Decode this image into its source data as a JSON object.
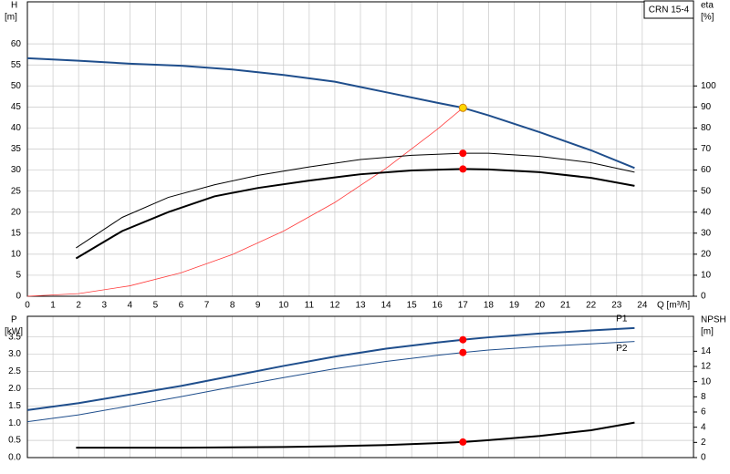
{
  "chart_data": [
    {
      "type": "line",
      "label_box": "CRN 15-4",
      "y_label": "H",
      "y_unit": "[m]",
      "y2_label": "eta",
      "y2_unit": "[%]",
      "x_label": "Q [m³/h]",
      "xlim": [
        0,
        26
      ],
      "xticks": [
        0,
        1,
        2,
        3,
        4,
        5,
        6,
        7,
        8,
        9,
        10,
        11,
        12,
        13,
        14,
        15,
        16,
        17,
        18,
        19,
        20,
        21,
        22,
        23,
        24
      ],
      "ylim": [
        0,
        70
      ],
      "yticks": [
        0,
        5,
        10,
        15,
        20,
        25,
        30,
        35,
        40,
        45,
        50,
        55,
        60
      ],
      "y2lim": [
        0,
        140
      ],
      "y2ticks": [
        0,
        10,
        20,
        30,
        40,
        50,
        60,
        70,
        80,
        90,
        100
      ],
      "grid": true,
      "series": [
        {
          "color": "#1f4e8c",
          "width": 2,
          "x": [
            0,
            2,
            4,
            6,
            8,
            10,
            12,
            14,
            16,
            17,
            18,
            20,
            22,
            23.7
          ],
          "values": [
            56.6,
            56,
            55.3,
            54.8,
            53.9,
            52.6,
            51,
            48.5,
            46,
            44.8,
            43,
            39,
            34.7,
            30.5
          ]
        },
        {
          "color": "#ff3b3b",
          "width": 0.8,
          "x": [
            0,
            2,
            4,
            6,
            8,
            10,
            12,
            14,
            16,
            17
          ],
          "values": [
            0,
            0.62,
            2.48,
            5.58,
            9.92,
            15.5,
            22.3,
            30.4,
            39.7,
            44.8
          ]
        },
        {
          "color": "#000000",
          "width": 1,
          "axis": "y2",
          "x": [
            1.9,
            3.7,
            5.5,
            7.3,
            9,
            11,
            13,
            15,
            17,
            18,
            20,
            22,
            23.7
          ],
          "values": [
            23,
            37.5,
            47,
            53,
            57.5,
            61.5,
            65,
            67,
            68,
            68,
            66.5,
            63.5,
            59
          ]
        },
        {
          "color": "#000000",
          "width": 2,
          "axis": "y2",
          "x": [
            1.9,
            3.7,
            5.5,
            7.3,
            9,
            11,
            13,
            15,
            17,
            18,
            20,
            22,
            23.7
          ],
          "values": [
            18,
            31,
            40,
            47.5,
            51.5,
            55,
            58,
            59.8,
            60.5,
            60.3,
            59,
            56.3,
            52.5
          ]
        }
      ],
      "points": {
        "x": [
          17,
          17,
          17
        ],
        "values": [
          44.8,
          68,
          60.5
        ],
        "axes": [
          "y",
          "y2",
          "y2"
        ],
        "colors": [
          "#ffd700",
          "#ff0000",
          "#ff0000"
        ]
      }
    },
    {
      "type": "line",
      "y_label": "P",
      "y_unit": "[kW]",
      "y2_label": "NPSH",
      "y2_unit": "[m]",
      "xlim": [
        0,
        26
      ],
      "ylim": [
        0,
        4.1
      ],
      "yticks": [
        {
          "value": 0,
          "label": "0.0"
        },
        0.5,
        {
          "value": 1,
          "label": "1.0"
        },
        1.5,
        {
          "value": 2,
          "label": "2.0"
        },
        2.5,
        {
          "value": 3,
          "label": "3.0"
        },
        3.5
      ],
      "y2lim": [
        0,
        18.6
      ],
      "y2ticks": [
        0,
        2,
        4,
        6,
        8,
        10,
        12,
        14
      ],
      "grid": true,
      "series": [
        {
          "name": "P1",
          "color": "#1f4e8c",
          "width": 2,
          "x": [
            0,
            2,
            4,
            6,
            8,
            10,
            12,
            14,
            16,
            17,
            18,
            20,
            22,
            23.7
          ],
          "values": [
            1.38,
            1.58,
            1.83,
            2.08,
            2.37,
            2.66,
            2.93,
            3.16,
            3.34,
            3.42,
            3.49,
            3.6,
            3.69,
            3.76
          ]
        },
        {
          "name": "P2",
          "color": "#1f4e8c",
          "width": 1,
          "x": [
            0,
            2,
            4,
            6,
            8,
            10,
            12,
            14,
            16,
            17,
            18,
            20,
            22,
            23.7
          ],
          "values": [
            1.04,
            1.24,
            1.5,
            1.77,
            2.05,
            2.32,
            2.58,
            2.79,
            2.97,
            3.05,
            3.12,
            3.22,
            3.3,
            3.37
          ]
        },
        {
          "color": "#000000",
          "width": 2,
          "axis": "y2",
          "x": [
            1.9,
            4,
            6,
            8,
            10,
            12,
            14,
            16,
            17,
            18,
            20,
            22,
            23.7
          ],
          "values": [
            1.3,
            1.3,
            1.3,
            1.35,
            1.4,
            1.5,
            1.65,
            1.9,
            2.05,
            2.3,
            2.85,
            3.6,
            4.6
          ]
        }
      ],
      "points": {
        "x": [
          17,
          17,
          17
        ],
        "values": [
          3.42,
          3.05,
          2.05
        ],
        "axes": [
          "y",
          "y",
          "y2"
        ],
        "colors": [
          "#ff0000",
          "#ff0000",
          "#ff0000"
        ]
      }
    }
  ]
}
